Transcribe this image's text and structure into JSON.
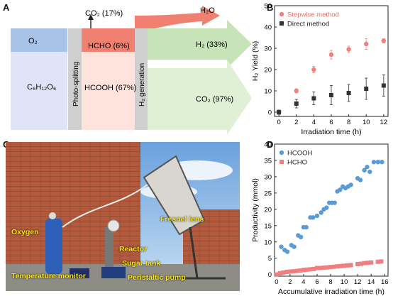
{
  "panels": {
    "a": "A",
    "b": "B",
    "c": "C",
    "d": "D"
  },
  "flow": {
    "o2": "O₂",
    "glucose": "C₆H₁₂O₆",
    "photo_splitting": "Photo-splitting",
    "co2_17": "CO₂ (17%)",
    "hcho": "HCHO (6%)",
    "hcooh": "HCOOH (67%)",
    "h2_generation": "H₂ generation",
    "h2o": "H₂O",
    "h2": "H₂ (33%)",
    "co2_97": "CO₂ (97%)",
    "colors": {
      "o2": "#a9c3e8",
      "glucose": "#dfe3f7",
      "hcho": "#f08070",
      "hcooh": "#fde3dc",
      "divider": "#cfcfcf",
      "green": "#c7e3b8"
    }
  },
  "photo_labels": {
    "oxygen": "Oxygen",
    "fresnel": "Fresnel lens",
    "reactor": "Reactor",
    "sugar_tank": "Sugar tank",
    "temp_monitor": "Temperature monitor",
    "pump": "Peristaltic pump"
  },
  "chart_data": [
    {
      "panel": "B",
      "type": "scatter",
      "xlabel": "Irradiation time (h)",
      "ylabel": "H₂ Yield (%)",
      "xlim": [
        -0.5,
        12.5
      ],
      "ylim": [
        -2,
        50
      ],
      "xticks": [
        0,
        2,
        4,
        6,
        8,
        10,
        12
      ],
      "yticks": [
        0,
        10,
        20,
        30,
        40,
        50
      ],
      "legend": "top-left",
      "series": [
        {
          "name": "Stepwise method",
          "color": "#f08080",
          "marker": "circle",
          "x": [
            0,
            2,
            4,
            6,
            8,
            10,
            12
          ],
          "y": [
            0,
            10,
            20,
            27,
            29.5,
            32,
            33.5
          ],
          "err": [
            0.5,
            1,
            1.5,
            2,
            1.5,
            2.5,
            1
          ]
        },
        {
          "name": "Direct method",
          "color": "#333333",
          "marker": "square",
          "x": [
            0,
            2,
            4,
            6,
            8,
            10,
            12
          ],
          "y": [
            0,
            4,
            6.5,
            8,
            9,
            11,
            12.5
          ],
          "err": [
            1,
            2,
            3,
            4.5,
            4,
            5,
            5
          ]
        }
      ]
    },
    {
      "panel": "D",
      "type": "scatter",
      "xlabel": "Accumulative irradiation time (h)",
      "ylabel": "Productivity (mmol)",
      "xlim": [
        -0.3,
        16.5
      ],
      "ylim": [
        -0.5,
        40
      ],
      "xticks": [
        0,
        2,
        4,
        6,
        8,
        10,
        12,
        14,
        16
      ],
      "yticks": [
        0,
        5,
        10,
        15,
        20,
        25,
        30,
        35,
        40
      ],
      "legend": "top-left",
      "series": [
        {
          "name": "HCOOH",
          "color": "#5b9bd5",
          "marker": "circle",
          "x": [
            0,
            0.7,
            1.2,
            1.6,
            2.2,
            2.6,
            3.2,
            3.6,
            4.0,
            4.4,
            5.0,
            5.4,
            6.0,
            6.6,
            7.0,
            7.4,
            7.8,
            8.2,
            8.6,
            9.0,
            9.4,
            9.8,
            10.2,
            10.6,
            11.0,
            12.0,
            12.4,
            13.0,
            13.4,
            13.8,
            14.4,
            15.0,
            15.6
          ],
          "y": [
            0,
            8.5,
            7.5,
            7.0,
            9.0,
            8.5,
            12.0,
            11.5,
            14.5,
            14.5,
            17.5,
            17.5,
            18.0,
            19.0,
            20.0,
            20.5,
            22.0,
            22.0,
            22.0,
            25.5,
            26.0,
            27.0,
            26.5,
            27.0,
            27.5,
            29.5,
            29.0,
            32.0,
            33.0,
            31.5,
            34.5,
            34.5,
            34.5
          ]
        },
        {
          "name": "HCHO",
          "color": "#f08080",
          "marker": "square",
          "x": [
            0,
            0.5,
            1.0,
            1.5,
            2.0,
            2.5,
            3.0,
            3.5,
            4.0,
            4.5,
            5.0,
            5.5,
            6.0,
            6.5,
            7.0,
            7.5,
            8.0,
            8.5,
            9.0,
            9.5,
            10.0,
            10.5,
            11.0,
            12.0,
            12.5,
            13.0,
            13.5,
            14.0,
            15.0,
            15.5
          ],
          "y": [
            0,
            0.4,
            0.6,
            0.8,
            0.9,
            1.0,
            1.1,
            1.2,
            1.4,
            1.5,
            1.6,
            1.7,
            2.0,
            2.0,
            2.1,
            2.2,
            2.3,
            2.4,
            2.5,
            2.6,
            2.7,
            2.8,
            2.9,
            3.2,
            3.3,
            3.5,
            3.6,
            3.7,
            3.9,
            4.0
          ]
        }
      ]
    }
  ]
}
